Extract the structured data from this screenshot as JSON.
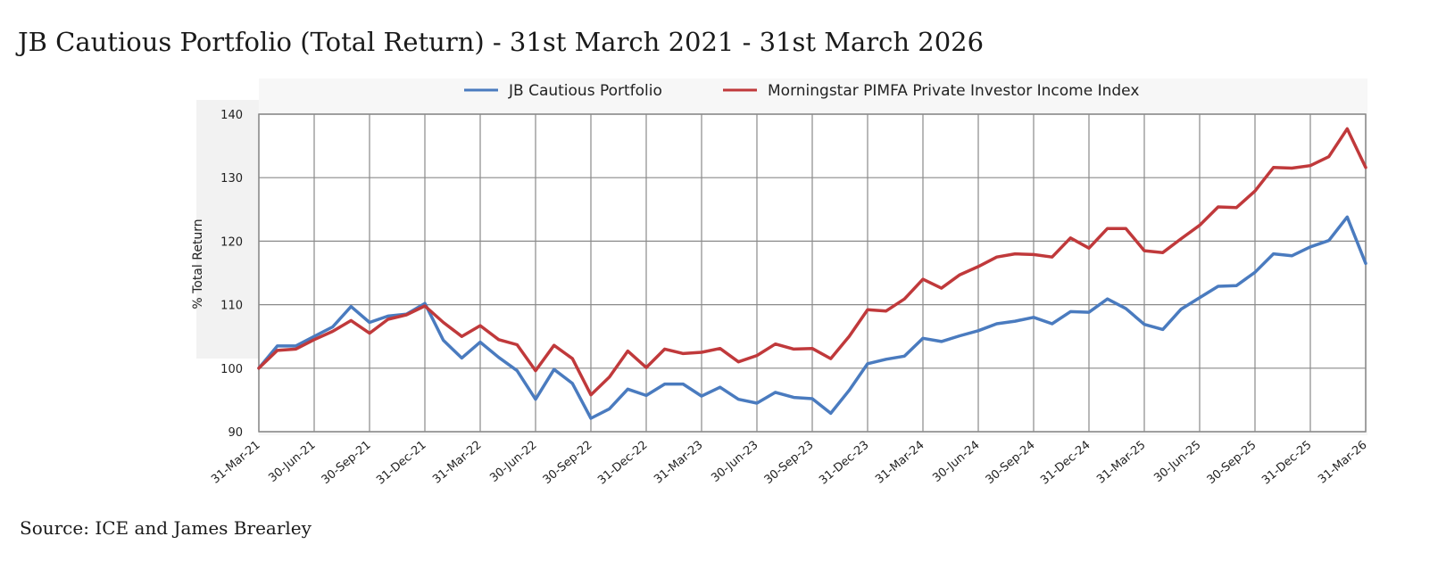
{
  "page": {
    "title": "JB Cautious Portfolio (Total Return) - 31st March 2021 - 31st March 2026",
    "source": "Source: ICE and James Brearley"
  },
  "chart_data": {
    "type": "line",
    "title": "JB Cautious Portfolio (Total Return) - 31st March 2021 - 31st March 2026",
    "xlabel": "",
    "ylabel": "% Total Return",
    "ylim": [
      90,
      140
    ],
    "yticks": [
      90,
      100,
      110,
      120,
      130,
      140
    ],
    "grid": true,
    "legend_position": "top",
    "x_tick_labels": [
      "31-Mar-21",
      "30-Jun-21",
      "30-Sep-21",
      "31-Dec-21",
      "31-Mar-22",
      "30-Jun-22",
      "30-Sep-22",
      "31-Dec-22",
      "31-Mar-23",
      "30-Jun-23",
      "30-Sep-23",
      "31-Dec-23",
      "31-Mar-24",
      "30-Jun-24",
      "30-Sep-24",
      "31-Dec-24",
      "31-Mar-25",
      "30-Jun-25",
      "30-Sep-25",
      "31-Dec-25",
      "31-Mar-26"
    ],
    "x": [
      "31-Mar-21",
      "30-Apr-21",
      "31-May-21",
      "30-Jun-21",
      "31-Jul-21",
      "31-Aug-21",
      "30-Sep-21",
      "31-Oct-21",
      "30-Nov-21",
      "31-Dec-21",
      "31-Jan-22",
      "28-Feb-22",
      "31-Mar-22",
      "30-Apr-22",
      "31-May-22",
      "30-Jun-22",
      "31-Jul-22",
      "31-Aug-22",
      "30-Sep-22",
      "31-Oct-22",
      "30-Nov-22",
      "31-Dec-22",
      "31-Jan-23",
      "28-Feb-23",
      "31-Mar-23",
      "30-Apr-23",
      "31-May-23",
      "30-Jun-23",
      "31-Jul-23",
      "31-Aug-23",
      "30-Sep-23",
      "31-Oct-23",
      "30-Nov-23",
      "31-Dec-23",
      "31-Jan-24",
      "29-Feb-24",
      "31-Mar-24",
      "30-Apr-24",
      "31-May-24",
      "30-Jun-24",
      "31-Jul-24",
      "31-Aug-24",
      "30-Sep-24",
      "31-Oct-24",
      "30-Nov-24",
      "31-Dec-24",
      "31-Jan-25",
      "28-Feb-25",
      "31-Mar-25",
      "30-Apr-25",
      "31-May-25",
      "30-Jun-25",
      "31-Jul-25",
      "31-Aug-25",
      "30-Sep-25",
      "31-Oct-25",
      "30-Nov-25",
      "31-Dec-25",
      "31-Jan-26",
      "28-Feb-26",
      "31-Mar-26"
    ],
    "series": [
      {
        "name": "JB Cautious Portfolio",
        "color": "#4a7bbf",
        "values": [
          100,
          103.5,
          103.5,
          105,
          106.5,
          109.7,
          107.2,
          108.2,
          108.5,
          110.2,
          104.4,
          101.6,
          104.1,
          101.7,
          99.6,
          95.1,
          99.8,
          97.6,
          92.1,
          93.6,
          96.7,
          95.7,
          97.5,
          97.5,
          95.6,
          97,
          95.1,
          94.5,
          96.2,
          95.4,
          95.2,
          92.9,
          96.5,
          100.7,
          101.4,
          101.9,
          104.7,
          104.2,
          105.1,
          105.9,
          107,
          107.4,
          108,
          107,
          108.9,
          108.8,
          110.9,
          109.4,
          106.9,
          106.1,
          109.3,
          111.1,
          112.9,
          113,
          115.1,
          118,
          117.7,
          119.1,
          120.1,
          123.8,
          116.5
        ]
      },
      {
        "name": "Morningstar PIMFA Private Investor Income Index",
        "color": "#c0393b",
        "values": [
          100,
          102.8,
          103,
          104.5,
          105.8,
          107.5,
          105.5,
          107.7,
          108.4,
          109.8,
          107.2,
          105,
          106.7,
          104.5,
          103.7,
          99.6,
          103.6,
          101.5,
          95.8,
          98.6,
          102.7,
          100.1,
          103,
          102.3,
          102.5,
          103.1,
          101,
          102,
          103.8,
          103,
          103.1,
          101.5,
          105,
          109.2,
          109,
          110.9,
          114,
          112.6,
          114.7,
          116,
          117.5,
          118,
          117.9,
          117.5,
          120.5,
          118.9,
          122,
          122,
          118.5,
          118.2,
          120.4,
          122.5,
          125.4,
          125.3,
          127.9,
          131.6,
          131.5,
          131.9,
          133.3,
          137.7,
          131.6
        ]
      }
    ]
  }
}
